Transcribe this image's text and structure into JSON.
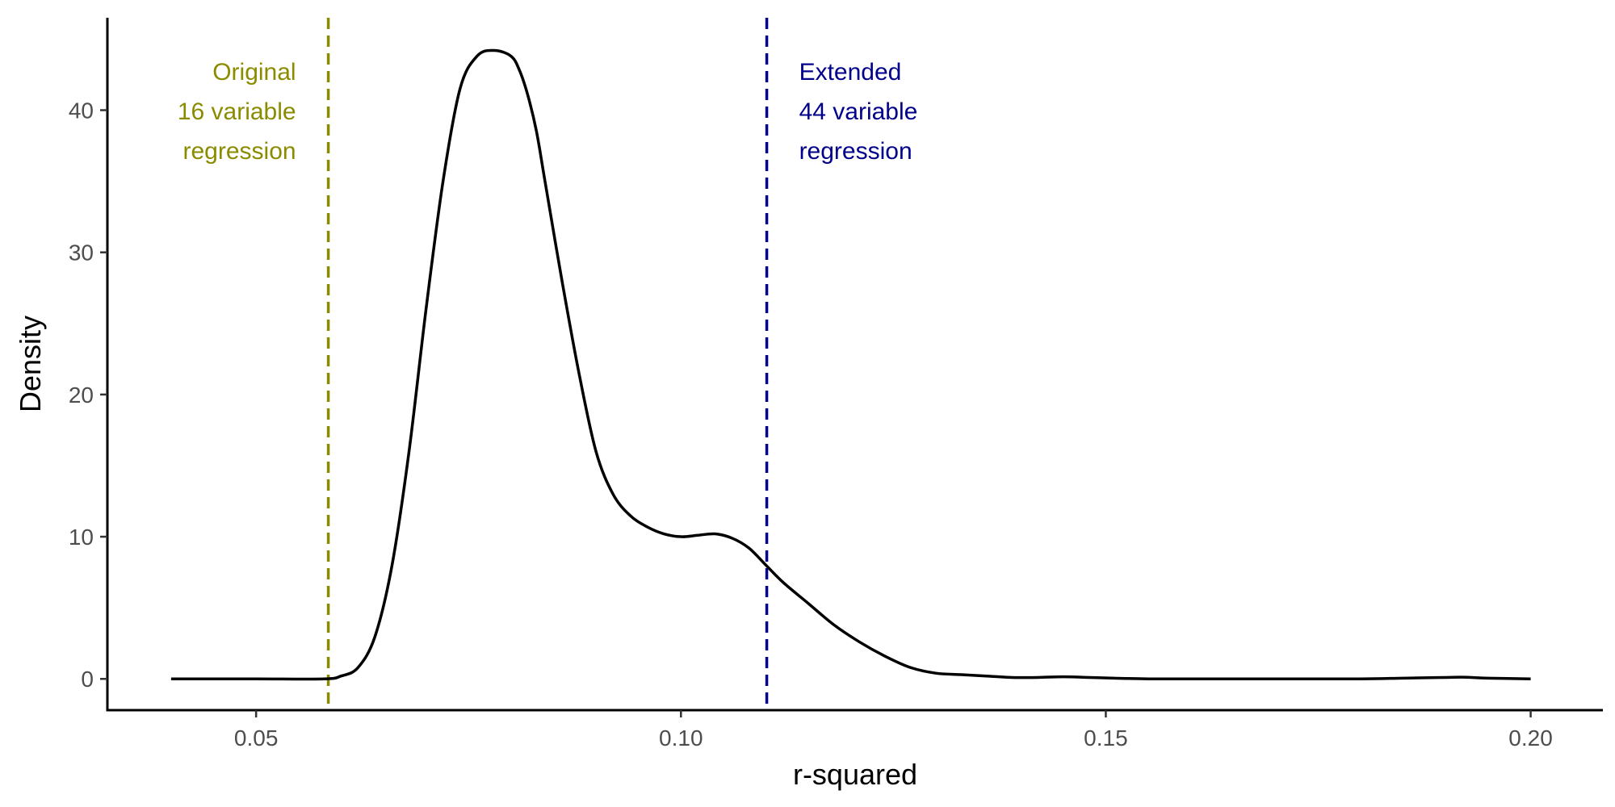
{
  "chart_data": {
    "type": "line",
    "title": "",
    "xlabel": "r-squared",
    "ylabel": "Density",
    "xlim": [
      0.0325,
      0.2085
    ],
    "ylim": [
      -2.2,
      46.5
    ],
    "x_ticks": [
      0.05,
      0.1,
      0.15,
      0.2
    ],
    "x_tick_labels": [
      "0.05",
      "0.10",
      "0.15",
      "0.20"
    ],
    "y_ticks": [
      0,
      10,
      20,
      30,
      40
    ],
    "y_tick_labels": [
      "0",
      "10",
      "20",
      "30",
      "40"
    ],
    "grid": false,
    "series": [
      {
        "color": "#000000",
        "x": [
          0.04,
          0.05,
          0.058,
          0.06,
          0.062,
          0.064,
          0.066,
          0.068,
          0.07,
          0.072,
          0.074,
          0.076,
          0.078,
          0.08,
          0.081,
          0.082,
          0.083,
          0.084,
          0.086,
          0.088,
          0.09,
          0.092,
          0.094,
          0.096,
          0.098,
          0.1,
          0.102,
          0.104,
          0.106,
          0.108,
          0.11,
          0.112,
          0.115,
          0.118,
          0.121,
          0.124,
          0.127,
          0.13,
          0.133,
          0.136,
          0.139,
          0.142,
          0.145,
          0.148,
          0.151,
          0.155,
          0.16,
          0.17,
          0.18,
          0.185,
          0.19,
          0.192,
          0.195,
          0.2
        ],
        "y": [
          0,
          0,
          0,
          0.2,
          0.8,
          3,
          8,
          16,
          26,
          35,
          41.5,
          43.8,
          44.2,
          43.8,
          42.8,
          41,
          38.5,
          35,
          28,
          21.5,
          16,
          13,
          11.5,
          10.7,
          10.2,
          10,
          10.1,
          10.2,
          9.9,
          9.2,
          8.0,
          6.8,
          5.3,
          3.8,
          2.6,
          1.6,
          0.8,
          0.4,
          0.3,
          0.2,
          0.1,
          0.1,
          0.15,
          0.1,
          0.05,
          0,
          0,
          0,
          0,
          0.05,
          0.1,
          0.12,
          0.05,
          0
        ]
      }
    ],
    "vlines": [
      {
        "x": 0.0585,
        "color": "#8b8b00",
        "style": "dashed",
        "label": [
          "Original",
          "16 variable",
          "regression"
        ],
        "label_side": "left"
      },
      {
        "x": 0.1101,
        "color": "#00008b",
        "style": "dashed",
        "label": [
          "Extended",
          "44 variable",
          "regression"
        ],
        "label_side": "right"
      }
    ]
  }
}
